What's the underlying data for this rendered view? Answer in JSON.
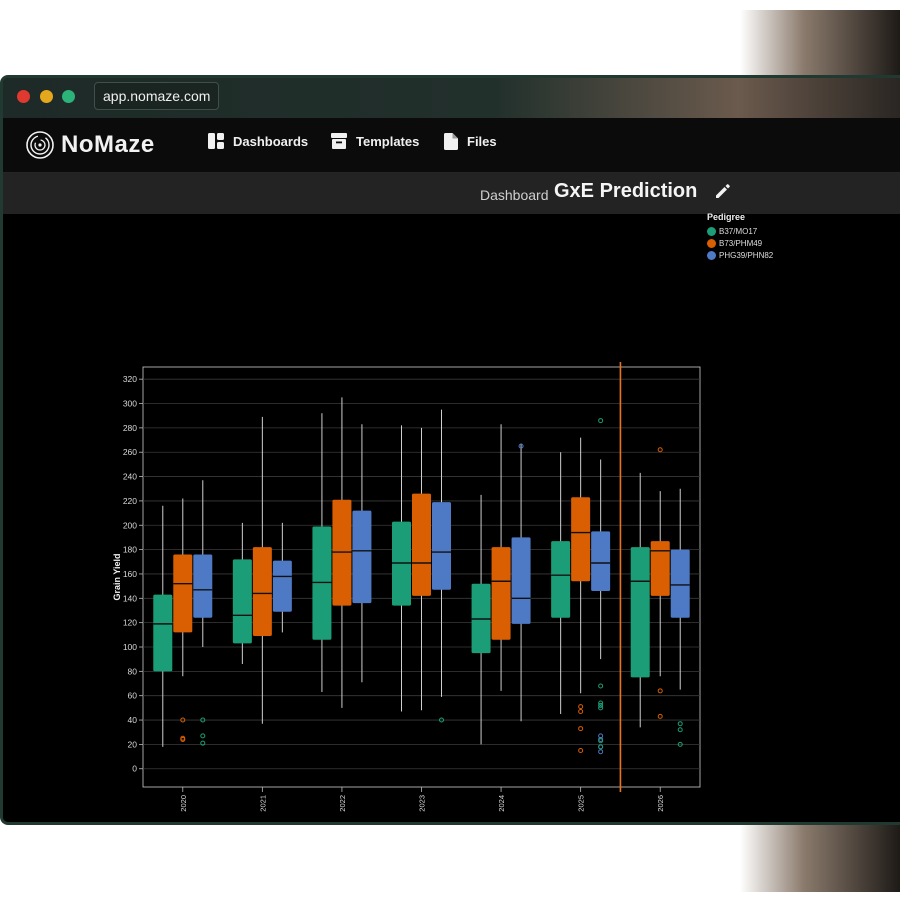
{
  "browser": {
    "url": "app.nomaze.com"
  },
  "nav": {
    "brand": "NoMaze",
    "items": [
      {
        "label": "Dashboards",
        "icon": "dashboard-icon"
      },
      {
        "label": "Templates",
        "icon": "archive-icon"
      },
      {
        "label": "Files",
        "icon": "file-icon"
      }
    ]
  },
  "header": {
    "section_label": "Dashboard",
    "title": "GxE Prediction",
    "edit_icon": "pencil-icon"
  },
  "colors": {
    "B37/MO17": "#1b9e77",
    "B73/PHM49": "#d95f02",
    "PHG39/PHN82": "#4e79c4",
    "divider": "#e8731c"
  },
  "chart_data": {
    "type": "boxplot",
    "ylabel": "Grain Yield",
    "ylim": [
      -15,
      330
    ],
    "yticks": [
      0,
      20,
      40,
      60,
      80,
      100,
      120,
      140,
      160,
      180,
      200,
      220,
      240,
      260,
      280,
      300,
      320
    ],
    "categories": [
      "2020",
      "2021",
      "2022",
      "2023",
      "2024",
      "2025",
      "2026"
    ],
    "legend": {
      "title": "Pedigree",
      "position": "top-right"
    },
    "divider_after": "2025",
    "series": [
      {
        "name": "B37/MO17",
        "color": "#1b9e77",
        "boxes": [
          {
            "min": 18,
            "q1": 80,
            "median": 119,
            "q3": 143,
            "max": 216,
            "outliers": []
          },
          {
            "min": 86,
            "q1": 103,
            "median": 126,
            "q3": 172,
            "max": 202,
            "outliers": []
          },
          {
            "min": 63,
            "q1": 106,
            "median": 153,
            "q3": 199,
            "max": 292,
            "outliers": []
          },
          {
            "min": 47,
            "q1": 134,
            "median": 169,
            "q3": 203,
            "max": 282,
            "outliers": []
          },
          {
            "min": 20,
            "q1": 95,
            "median": 123,
            "q3": 152,
            "max": 225,
            "outliers": []
          },
          {
            "min": 45,
            "q1": 124,
            "median": 159,
            "q3": 187,
            "max": 260,
            "outliers": []
          },
          {
            "min": 34,
            "q1": 75,
            "median": 154,
            "q3": 182,
            "max": 243,
            "outliers": []
          }
        ]
      },
      {
        "name": "B73/PHM49",
        "color": "#d95f02",
        "boxes": [
          {
            "min": 76,
            "q1": 112,
            "median": 152,
            "q3": 176,
            "max": 222,
            "outliers": [
              40,
              25,
              24
            ]
          },
          {
            "min": 37,
            "q1": 109,
            "median": 144,
            "q3": 182,
            "max": 289,
            "outliers": []
          },
          {
            "min": 50,
            "q1": 134,
            "median": 178,
            "q3": 221,
            "max": 305,
            "outliers": []
          },
          {
            "min": 48,
            "q1": 142,
            "median": 169,
            "q3": 226,
            "max": 280,
            "outliers": []
          },
          {
            "min": 64,
            "q1": 106,
            "median": 154,
            "q3": 182,
            "max": 283,
            "outliers": []
          },
          {
            "min": 62,
            "q1": 154,
            "median": 194,
            "q3": 223,
            "max": 272,
            "outliers": [
              51,
              47,
              33,
              15
            ]
          },
          {
            "min": 76,
            "q1": 142,
            "median": 179,
            "q3": 187,
            "max": 228,
            "outliers": [
              262,
              64,
              43
            ]
          }
        ]
      },
      {
        "name": "PHG39/PHN82",
        "color": "#4e79c4",
        "boxes": [
          {
            "min": 100,
            "q1": 124,
            "median": 147,
            "q3": 176,
            "max": 237,
            "outliers": []
          },
          {
            "min": 112,
            "q1": 129,
            "median": 158,
            "q3": 171,
            "max": 202,
            "outliers": []
          },
          {
            "min": 71,
            "q1": 136,
            "median": 179,
            "q3": 212,
            "max": 283,
            "outliers": []
          },
          {
            "min": 59,
            "q1": 147,
            "median": 178,
            "q3": 219,
            "max": 295,
            "outliers": []
          },
          {
            "min": 39,
            "q1": 119,
            "median": 140,
            "q3": 190,
            "max": 267,
            "outliers": [
              265
            ]
          },
          {
            "min": 90,
            "q1": 146,
            "median": 169,
            "q3": 195,
            "max": 254,
            "outliers": [
              27,
              24,
              18,
              14
            ]
          },
          {
            "min": 65,
            "q1": 124,
            "median": 151,
            "q3": 180,
            "max": 230,
            "outliers": []
          }
        ]
      }
    ],
    "extra_outliers": [
      {
        "category": "2020",
        "series": "PHG39/PHN82",
        "color": "#1b9e77",
        "values": [
          40,
          27,
          21
        ]
      },
      {
        "category": "2023",
        "series": "PHG39/PHN82",
        "color": "#1b9e77",
        "values": [
          40
        ]
      },
      {
        "category": "2025",
        "series": "PHG39/PHN82",
        "color": "#1b9e77",
        "values": [
          286,
          68,
          54,
          52,
          50,
          23,
          18
        ]
      },
      {
        "category": "2026",
        "series": "PHG39/PHN82",
        "color": "#1b9e77",
        "values": [
          37,
          32,
          20
        ]
      }
    ]
  }
}
